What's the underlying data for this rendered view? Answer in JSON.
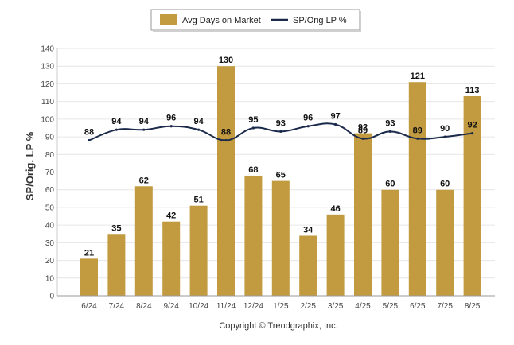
{
  "chart_data": {
    "type": "bar",
    "categories": [
      "6/24",
      "7/24",
      "8/24",
      "9/24",
      "10/24",
      "11/24",
      "12/24",
      "1/25",
      "2/25",
      "3/25",
      "4/25",
      "5/25",
      "6/25",
      "7/25",
      "8/25"
    ],
    "series": [
      {
        "name": "Avg Days on Market",
        "type": "bar",
        "color": "#c29b40",
        "values": [
          21,
          35,
          62,
          42,
          51,
          130,
          68,
          65,
          34,
          46,
          92,
          60,
          121,
          60,
          113
        ]
      },
      {
        "name": "SP/Orig LP %",
        "type": "line",
        "color": "#1b2a4a",
        "values": [
          88,
          94,
          94,
          96,
          94,
          88,
          95,
          93,
          96,
          97,
          89,
          93,
          89,
          90,
          92
        ]
      }
    ],
    "ylabel": "SP/Orig. LP %",
    "yticks": [
      "0",
      "10",
      "20",
      "30",
      "40",
      "50",
      "60",
      "70",
      "80",
      "90",
      "100",
      "110",
      "120",
      "130",
      "140"
    ],
    "ylim": [
      0,
      140
    ],
    "grid": true,
    "legend_position": "top-center",
    "footer": "Copyright © Trendgraphix, Inc."
  }
}
